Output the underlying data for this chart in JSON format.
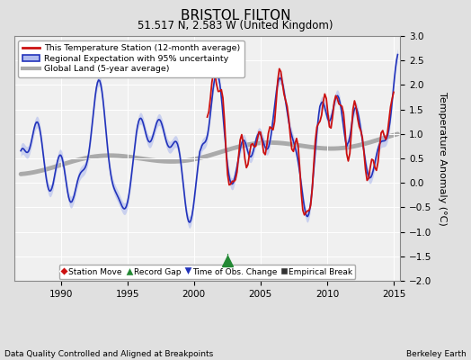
{
  "title": "BRISTOL FILTON",
  "subtitle": "51.517 N, 2.583 W (United Kingdom)",
  "ylabel": "Temperature Anomaly (°C)",
  "xlabel_left": "Data Quality Controlled and Aligned at Breakpoints",
  "xlabel_right": "Berkeley Earth",
  "ylim": [
    -2.0,
    3.0
  ],
  "xlim": [
    1986.5,
    2015.5
  ],
  "yticks": [
    -2,
    -1.5,
    -1,
    -0.5,
    0,
    0.5,
    1,
    1.5,
    2,
    2.5,
    3
  ],
  "xticks": [
    1990,
    1995,
    2000,
    2005,
    2010,
    2015
  ],
  "background_color": "#e0e0e0",
  "plot_background_color": "#f0f0f0",
  "grid_color": "#ffffff",
  "regional_fill_color": "#b0bbee",
  "regional_line_color": "#2233bb",
  "station_line_color": "#cc1111",
  "global_line_color": "#aaaaaa",
  "record_gap_x": 2002.5,
  "record_gap_y": -1.6,
  "station_start_year": 2001.0
}
